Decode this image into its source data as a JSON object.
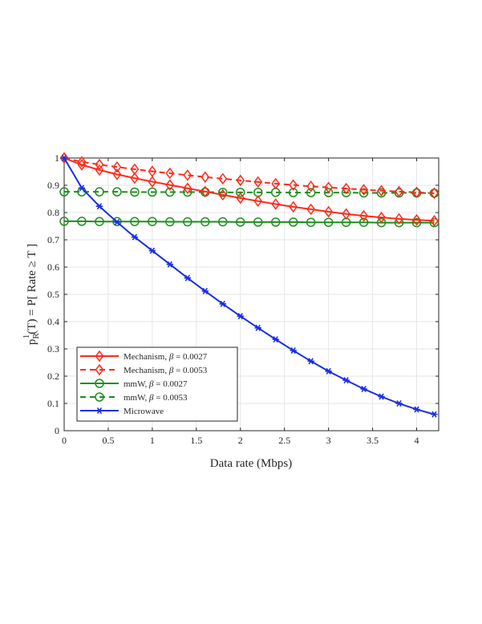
{
  "chart_data": {
    "type": "line",
    "xlabel": "Data rate (Mbps)",
    "ylabel": {
      "prefix": "p",
      "subscript": "R",
      "superscript": "1",
      "suffix": "(T) = P[ Rate ≥ T ]"
    },
    "xlim": [
      0,
      4.25
    ],
    "ylim": [
      0,
      1
    ],
    "xticks": [
      0,
      0.5,
      1,
      1.5,
      2,
      2.5,
      3,
      3.5,
      4
    ],
    "xtick_labels": [
      "0",
      "0.5",
      "1",
      "1.5",
      "2",
      "2.5",
      "3",
      "3.5",
      "4"
    ],
    "yticks": [
      0,
      0.1,
      0.2,
      0.3,
      0.4,
      0.5,
      0.6,
      0.7,
      0.8,
      0.9,
      1
    ],
    "ytick_labels": [
      "0",
      "0.1",
      "0.2",
      "0.3",
      "0.4",
      "0.5",
      "0.6",
      "0.7",
      "0.8",
      "0.9",
      "1"
    ],
    "grid": true,
    "legend_position": "bottom-left",
    "x": [
      0,
      0.2,
      0.4,
      0.6,
      0.8,
      1.0,
      1.2,
      1.4,
      1.6,
      1.8,
      2.0,
      2.2,
      2.4,
      2.6,
      2.8,
      3.0,
      3.2,
      3.4,
      3.6,
      3.8,
      4.0,
      4.2
    ],
    "series": [
      {
        "name_main": "Mechanism, ",
        "name_beta": "β",
        "name_value": " = 0.0027",
        "color": "#ff2a1a",
        "dash": "solid",
        "marker": "diamond",
        "values": [
          1.0,
          0.975,
          0.956,
          0.94,
          0.926,
          0.913,
          0.901,
          0.889,
          0.877,
          0.865,
          0.853,
          0.842,
          0.831,
          0.821,
          0.812,
          0.803,
          0.795,
          0.788,
          0.782,
          0.777,
          0.773,
          0.77
        ]
      },
      {
        "name_main": "Mechanism, ",
        "name_beta": "β",
        "name_value": " = 0.0053",
        "color": "#ff2a1a",
        "dash": "dashed",
        "marker": "diamond",
        "values": [
          1.0,
          0.986,
          0.976,
          0.967,
          0.959,
          0.951,
          0.944,
          0.937,
          0.93,
          0.924,
          0.918,
          0.912,
          0.906,
          0.901,
          0.896,
          0.892,
          0.888,
          0.884,
          0.88,
          0.877,
          0.874,
          0.871
        ]
      },
      {
        "name_main": "mmW, ",
        "name_beta": "β",
        "name_value": " = 0.0027",
        "color": "#1c8f1c",
        "dash": "solid",
        "marker": "circle",
        "values": [
          0.768,
          0.768,
          0.767,
          0.767,
          0.767,
          0.767,
          0.766,
          0.766,
          0.766,
          0.766,
          0.765,
          0.765,
          0.765,
          0.765,
          0.764,
          0.764,
          0.764,
          0.764,
          0.763,
          0.763,
          0.763,
          0.763
        ]
      },
      {
        "name_main": "mmW, ",
        "name_beta": "β",
        "name_value": " = 0.0053",
        "color": "#1c8f1c",
        "dash": "dashed",
        "marker": "circle",
        "values": [
          0.876,
          0.876,
          0.876,
          0.876,
          0.875,
          0.875,
          0.875,
          0.875,
          0.875,
          0.874,
          0.874,
          0.874,
          0.874,
          0.873,
          0.873,
          0.873,
          0.873,
          0.872,
          0.872,
          0.872,
          0.872,
          0.871
        ]
      },
      {
        "name_main": "Microwave",
        "name_beta": "",
        "name_value": "",
        "color": "#1a2ee6",
        "dash": "solid",
        "marker": "asterisk",
        "values": [
          1.0,
          0.89,
          0.823,
          0.765,
          0.71,
          0.66,
          0.61,
          0.56,
          0.512,
          0.465,
          0.42,
          0.377,
          0.335,
          0.294,
          0.255,
          0.218,
          0.185,
          0.153,
          0.125,
          0.1,
          0.078,
          0.06
        ]
      }
    ]
  }
}
